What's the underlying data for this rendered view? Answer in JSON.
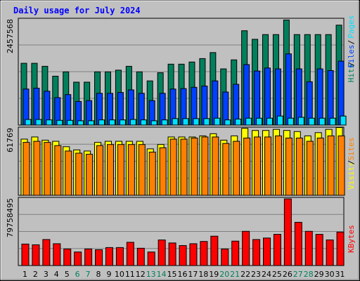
{
  "title": "Daily usage for July 2024",
  "colors": {
    "title": "#0000ff",
    "hits": "#00805c",
    "files": "#0040ff",
    "pages": "#00e0ff",
    "visits": "#ffff00",
    "sites": "#ff8000",
    "kbytes": "#ff0000",
    "weekend": "#00805c"
  },
  "chart_data": [
    {
      "type": "bar",
      "panel": "hits-files-pages",
      "max_label": "2457568",
      "legend": [
        {
          "name": "Hits",
          "color": "#00805c"
        },
        {
          "name": "Files",
          "color": "#0040ff"
        },
        {
          "name": "Pages",
          "color": "#00e0ff"
        }
      ],
      "ylim": [
        0,
        2457568
      ],
      "categories": [
        "1",
        "2",
        "3",
        "4",
        "5",
        "6",
        "7",
        "8",
        "9",
        "10",
        "11",
        "12",
        "13",
        "14",
        "15",
        "16",
        "17",
        "18",
        "19",
        "20",
        "21",
        "22",
        "23",
        "24",
        "25",
        "26",
        "27",
        "28",
        "29",
        "30",
        "31"
      ],
      "series": [
        {
          "name": "Hits",
          "values": [
            1440000,
            1440000,
            1370000,
            1140000,
            1240000,
            1000000,
            1000000,
            1240000,
            1240000,
            1280000,
            1370000,
            1240000,
            1030000,
            1220000,
            1420000,
            1420000,
            1470000,
            1550000,
            1690000,
            1310000,
            1520000,
            2200000,
            2000000,
            2110000,
            2110000,
            2450000,
            2110000,
            2110000,
            2110000,
            2110000,
            2330000
          ]
        },
        {
          "name": "Files",
          "values": [
            840000,
            860000,
            790000,
            640000,
            710000,
            550000,
            570000,
            740000,
            740000,
            760000,
            820000,
            740000,
            570000,
            740000,
            840000,
            850000,
            880000,
            910000,
            1030000,
            770000,
            950000,
            1410000,
            1260000,
            1330000,
            1310000,
            1660000,
            1310000,
            1010000,
            1310000,
            1270000,
            1490000
          ]
        },
        {
          "name": "Pages",
          "values": [
            130000,
            130000,
            120000,
            110000,
            110000,
            100000,
            100000,
            120000,
            120000,
            120000,
            130000,
            120000,
            100000,
            120000,
            150000,
            150000,
            150000,
            150000,
            160000,
            120000,
            140000,
            160000,
            160000,
            160000,
            210000,
            160000,
            180000,
            160000,
            160000,
            160000,
            210000
          ]
        }
      ]
    },
    {
      "type": "bar",
      "panel": "visits-sites",
      "max_label": "61769",
      "legend": [
        {
          "name": "Visits",
          "color": "#ffff00"
        },
        {
          "name": "Sites",
          "color": "#ff8000"
        }
      ],
      "ylim": [
        0,
        61769
      ],
      "categories": [
        "1",
        "2",
        "3",
        "4",
        "5",
        "6",
        "7",
        "8",
        "9",
        "10",
        "11",
        "12",
        "13",
        "14",
        "15",
        "16",
        "17",
        "18",
        "19",
        "20",
        "21",
        "22",
        "23",
        "24",
        "25",
        "26",
        "27",
        "28",
        "29",
        "30",
        "31"
      ],
      "series": [
        {
          "name": "Visits",
          "values": [
            52000,
            54000,
            51000,
            50000,
            45000,
            42000,
            41000,
            49000,
            50000,
            50000,
            50000,
            50000,
            43000,
            47000,
            54000,
            54000,
            54000,
            55000,
            57000,
            51000,
            55000,
            62000,
            60000,
            60000,
            61000,
            60000,
            59000,
            55000,
            58000,
            61000,
            62700
          ]
        },
        {
          "name": "Sites",
          "values": [
            49000,
            50000,
            49000,
            46000,
            41000,
            39000,
            38000,
            46000,
            47000,
            47000,
            47000,
            47000,
            40000,
            44000,
            52000,
            52000,
            53000,
            54000,
            54000,
            48000,
            50000,
            53000,
            54000,
            54000,
            55000,
            53000,
            53000,
            50000,
            53000,
            55000,
            55000
          ]
        }
      ]
    },
    {
      "type": "bar",
      "panel": "kbytes",
      "max_label": "79758495",
      "legend": [
        {
          "name": "KBytes",
          "color": "#ff0000"
        }
      ],
      "ylim": [
        0,
        79758495
      ],
      "categories": [
        "1",
        "2",
        "3",
        "4",
        "5",
        "6",
        "7",
        "8",
        "9",
        "10",
        "11",
        "12",
        "13",
        "14",
        "15",
        "16",
        "17",
        "18",
        "19",
        "20",
        "21",
        "22",
        "23",
        "24",
        "25",
        "26",
        "27",
        "28",
        "29",
        "30",
        "31"
      ],
      "series": [
        {
          "name": "KBytes",
          "values": [
            25700000,
            24800000,
            31100000,
            26100000,
            19800000,
            16200000,
            19800000,
            18900000,
            21500000,
            21500000,
            27800000,
            20700000,
            16200000,
            30600000,
            27000000,
            23900000,
            26100000,
            28800000,
            35100000,
            19800000,
            29200000,
            40900000,
            31100000,
            32900000,
            37300000,
            79700000,
            51700000,
            40900000,
            37300000,
            30600000,
            40000000
          ]
        }
      ]
    }
  ],
  "weekend_days": [
    "6",
    "7",
    "13",
    "14",
    "20",
    "21",
    "27",
    "28"
  ]
}
